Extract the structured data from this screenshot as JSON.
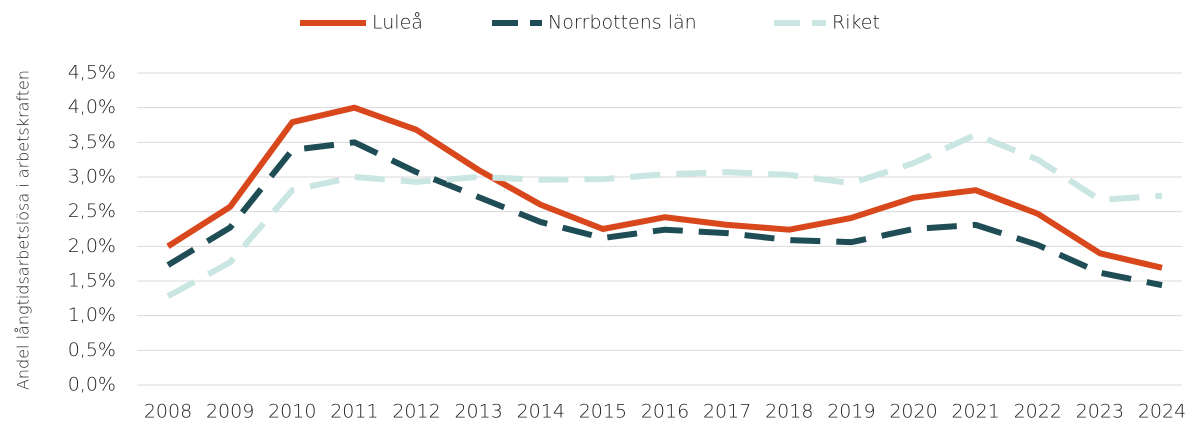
{
  "chart_data": {
    "type": "line",
    "y_label": "Andel långtidsarbetslösa i arbetskraften",
    "categories": [
      "2008",
      "2009",
      "2010",
      "2011",
      "2012",
      "2013",
      "2014",
      "2015",
      "2016",
      "2017",
      "2018",
      "2019",
      "2020",
      "2021",
      "2022",
      "2023",
      "2024"
    ],
    "series": [
      {
        "name": "Luleå",
        "color": "#d9471c",
        "dash": "solid",
        "values": [
          2.0,
          2.57,
          3.79,
          4.0,
          3.68,
          3.1,
          2.6,
          2.25,
          2.42,
          2.31,
          2.24,
          2.41,
          2.7,
          2.81,
          2.47,
          1.9,
          1.69
        ]
      },
      {
        "name": "Norrbottens län",
        "color": "#1e4d55",
        "dash": "dashed",
        "values": [
          1.73,
          2.27,
          3.39,
          3.5,
          3.07,
          2.71,
          2.35,
          2.12,
          2.24,
          2.19,
          2.09,
          2.06,
          2.25,
          2.31,
          2.02,
          1.62,
          1.44
        ]
      },
      {
        "name": "Riket",
        "color": "#c9e6e2",
        "dash": "dashed",
        "values": [
          1.28,
          1.77,
          2.81,
          3.0,
          2.93,
          3.0,
          2.96,
          2.97,
          3.04,
          3.07,
          3.03,
          2.91,
          3.2,
          3.61,
          3.25,
          2.67,
          2.73
        ]
      }
    ],
    "ylim": [
      0,
      4.5
    ],
    "yticks": [
      {
        "value": 0,
        "label": "0,0%"
      },
      {
        "value": 0.5,
        "label": "0,5%"
      },
      {
        "value": 1,
        "label": "1,0%"
      },
      {
        "value": 1.5,
        "label": "1,5%"
      },
      {
        "value": 2,
        "label": "2,0%"
      },
      {
        "value": 2.5,
        "label": "2,5%"
      },
      {
        "value": 3,
        "label": "3,0%"
      },
      {
        "value": 3.5,
        "label": "3,5%"
      },
      {
        "value": 4,
        "label": "4,0%"
      },
      {
        "value": 4.5,
        "label": "4,5%"
      }
    ],
    "grid": true,
    "legend": "top"
  }
}
